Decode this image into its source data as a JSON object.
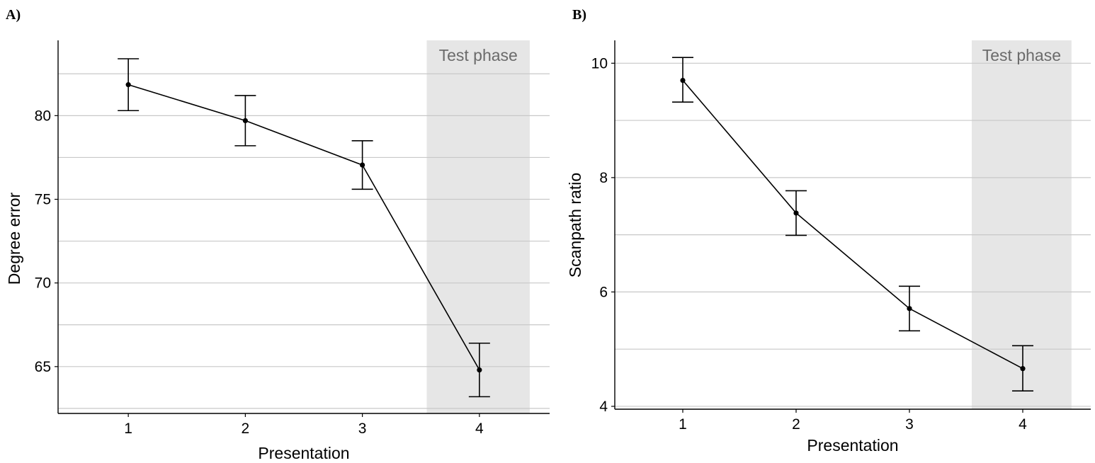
{
  "chart_data": [
    {
      "type": "line",
      "panel_label": "A)",
      "xlabel": "Presentation",
      "ylabel": "Degree error",
      "x": [
        1,
        2,
        3,
        4
      ],
      "x_tick_labels": [
        "1",
        "2",
        "3",
        "4"
      ],
      "xlim": [
        0.4,
        4.6
      ],
      "ylim": [
        62.2,
        84.5
      ],
      "y_ticks": [
        65,
        70,
        75,
        80
      ],
      "y_tick_labels": [
        "65",
        "70",
        "75",
        "80"
      ],
      "y_minor_grid": [
        62.5,
        67.5,
        72.5,
        77.5,
        82.5
      ],
      "grid": "horizontal",
      "series": [
        {
          "values": [
            81.85,
            79.7,
            77.05,
            64.8
          ],
          "error_lower": [
            80.3,
            78.2,
            75.6,
            63.2
          ],
          "error_upper": [
            83.4,
            81.2,
            78.5,
            66.4
          ]
        }
      ],
      "shaded_region": {
        "x_range": [
          3.55,
          4.43
        ],
        "label": "Test phase",
        "color": "#e6e6e6"
      }
    },
    {
      "type": "line",
      "panel_label": "B)",
      "xlabel": "Presentation",
      "ylabel": "Scanpath ratio",
      "x": [
        1,
        2,
        3,
        4
      ],
      "x_tick_labels": [
        "1",
        "2",
        "3",
        "4"
      ],
      "xlim": [
        0.4,
        4.6
      ],
      "ylim": [
        3.95,
        10.4
      ],
      "y_ticks": [
        4,
        6,
        8,
        10
      ],
      "y_tick_labels": [
        "4",
        "6",
        "8",
        "10"
      ],
      "y_minor_grid": [
        5,
        7,
        9
      ],
      "grid": "horizontal",
      "series": [
        {
          "values": [
            9.7,
            7.38,
            5.71,
            4.66
          ],
          "error_lower": [
            9.32,
            6.99,
            5.32,
            4.27
          ],
          "error_upper": [
            10.1,
            7.77,
            6.1,
            5.06
          ]
        }
      ],
      "shaded_region": {
        "x_range": [
          3.55,
          4.43
        ],
        "label": "Test phase",
        "color": "#e6e6e6"
      }
    }
  ]
}
